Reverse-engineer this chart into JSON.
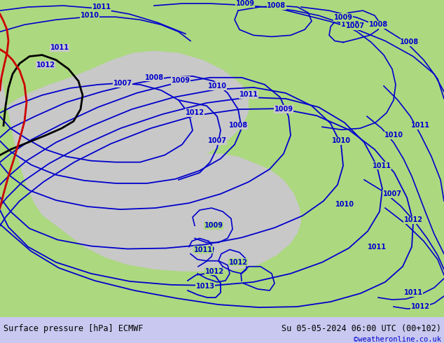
{
  "title_left": "Surface pressure [hPa] ECMWF",
  "title_right": "Su 05-05-2024 06:00 UTC (00+102)",
  "copyright": "©weatheronline.co.uk",
  "bg_color": "#acd87f",
  "sea_color": "#c8c8c8",
  "isobar_color": "#0000cc",
  "black_front_color": "#000000",
  "red_front_color": "#cc0000",
  "bottom_bar_color": "#c8c8f0",
  "figsize": [
    6.34,
    4.9
  ],
  "dpi": 100
}
